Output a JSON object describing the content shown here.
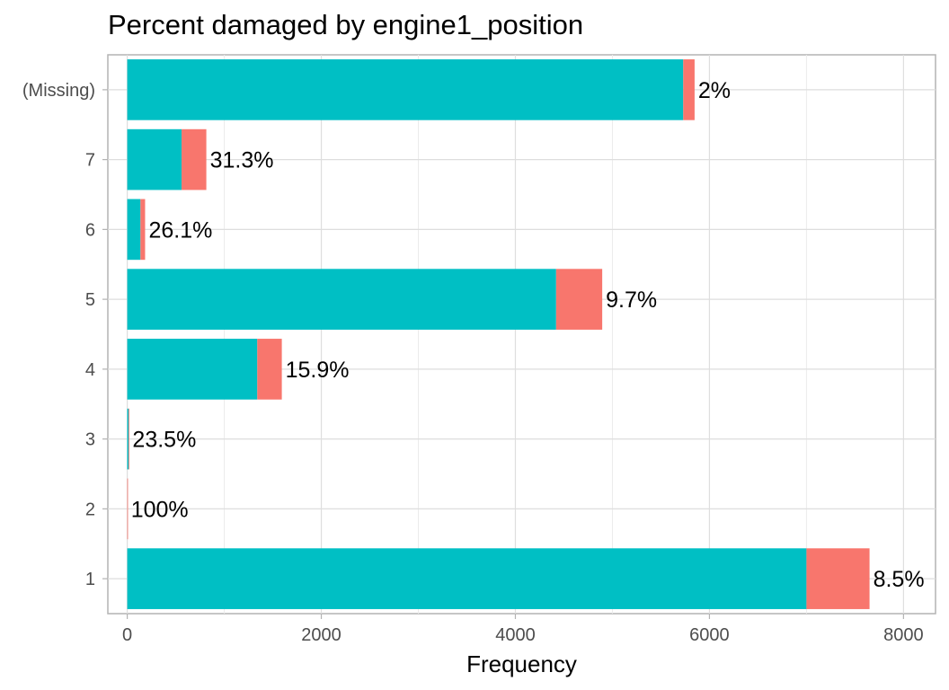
{
  "chart_data": {
    "type": "bar",
    "orientation": "horizontal",
    "stacked": true,
    "title": "Percent damaged by engine1_position",
    "xlabel": "Frequency",
    "ylabel": "",
    "xlim": [
      -200,
      8330
    ],
    "x_ticks": [
      0,
      2000,
      4000,
      6000,
      8000
    ],
    "x_tick_labels": [
      "0",
      "2000",
      "4000",
      "6000",
      "8000"
    ],
    "categories": [
      "1",
      "2",
      "3",
      "4",
      "5",
      "6",
      "7",
      "(Missing)"
    ],
    "series": [
      {
        "color": "#00BFC4",
        "values": [
          7000,
          0,
          13,
          1340,
          4420,
          136,
          560,
          5730
        ]
      },
      {
        "color": "#F8766D",
        "values": [
          650,
          1,
          4,
          253,
          475,
          48,
          255,
          117
        ]
      }
    ],
    "data_labels": [
      "8.5%",
      "100%",
      "23.5%",
      "15.9%",
      "9.7%",
      "26.1%",
      "31.3%",
      "2%"
    ],
    "grid": true,
    "legend": "none"
  }
}
